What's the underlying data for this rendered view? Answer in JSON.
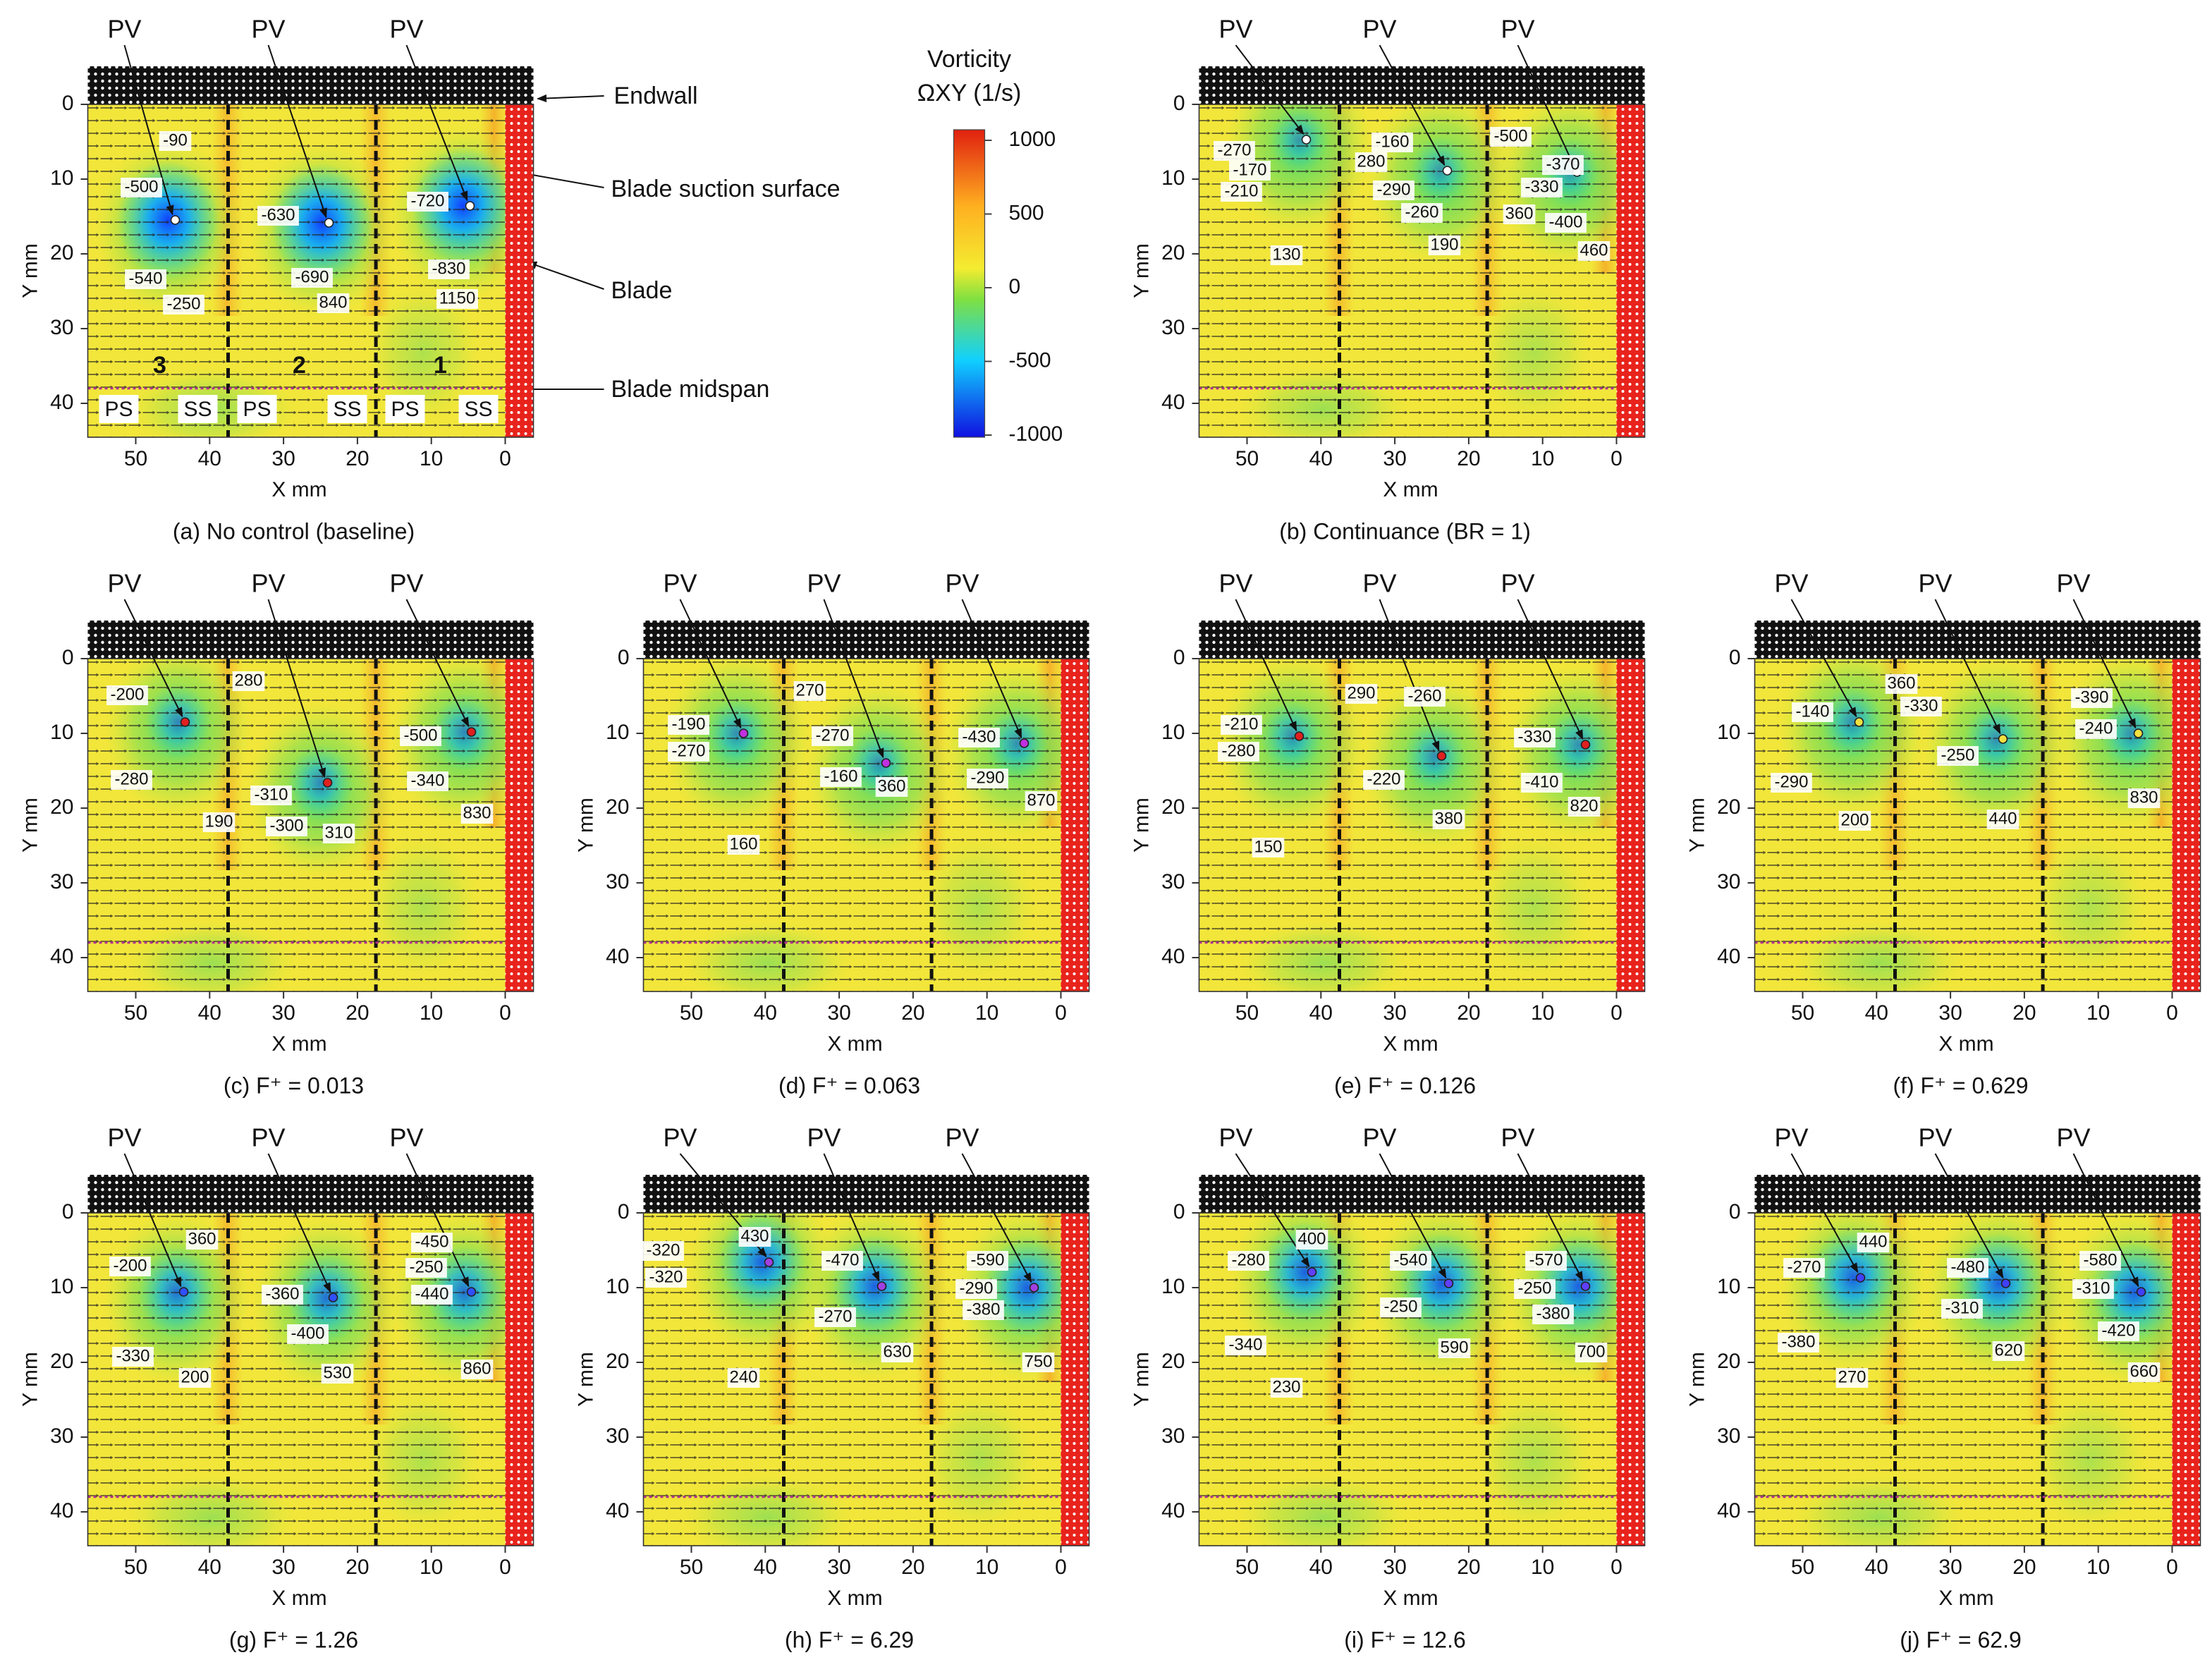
{
  "axes": {
    "xlabel": "X mm",
    "ylabel": "Y mm",
    "xticks": [
      50,
      40,
      30,
      20,
      10,
      0
    ],
    "yticks": [
      0,
      10,
      20,
      30,
      40
    ]
  },
  "colorbar": {
    "title": "Vorticity",
    "subtitle": "ΩXY (1/s)",
    "ticks": [
      1000,
      500,
      0,
      -500,
      -1000
    ]
  },
  "labels": {
    "endwall": "Endwall",
    "suction": "Blade suction surface",
    "blade": "Blade",
    "midspan": "Blade midspan"
  },
  "regions": [
    "3",
    "2",
    "1"
  ],
  "sides": [
    "PS",
    "SS",
    "PS",
    "SS",
    "PS",
    "SS"
  ],
  "vortex_label": "PV",
  "panels": [
    {
      "caption": "(a) No control (baseline)",
      "annotations": [
        -90,
        -500,
        -540,
        -250,
        -630,
        -690,
        840,
        -720,
        -830,
        1150
      ]
    },
    {
      "caption": "(b) Continuance (BR = 1)",
      "annotations": [
        -270,
        -170,
        -210,
        280,
        -160,
        -290,
        -260,
        190,
        130,
        -500,
        -370,
        -330,
        360,
        -400,
        460
      ]
    },
    {
      "caption": "(c) F⁺ = 0.013",
      "annotations": [
        -200,
        280,
        -280,
        190,
        -310,
        -300,
        310,
        -500,
        -340,
        830
      ]
    },
    {
      "caption": "(d) F⁺ = 0.063",
      "annotations": [
        -190,
        -270,
        270,
        -270,
        -160,
        360,
        -430,
        -290,
        870,
        160
      ]
    },
    {
      "caption": "(e) F⁺ = 0.126",
      "annotations": [
        -210,
        -280,
        290,
        -260,
        -220,
        380,
        -330,
        -410,
        820,
        150
      ]
    },
    {
      "caption": "(f) F⁺ = 0.629",
      "annotations": [
        -140,
        360,
        -290,
        200,
        -330,
        -250,
        440,
        -390,
        -240,
        830
      ]
    },
    {
      "caption": "(g) F⁺ = 1.26",
      "annotations": [
        -200,
        360,
        -330,
        200,
        -360,
        -400,
        530,
        -450,
        -250,
        -440,
        860
      ]
    },
    {
      "caption": "(h) F⁺ = 6.29",
      "annotations": [
        -320,
        430,
        -320,
        240,
        -470,
        -270,
        630,
        -590,
        -290,
        -380,
        750
      ]
    },
    {
      "caption": "(i) F⁺ = 12.6",
      "annotations": [
        -280,
        400,
        -340,
        230,
        -540,
        -250,
        590,
        -570,
        -250,
        -380,
        700
      ]
    },
    {
      "caption": "(j) F⁺ = 62.9",
      "annotations": [
        -270,
        440,
        -380,
        270,
        -480,
        -310,
        620,
        -580,
        -310,
        -420,
        660
      ]
    }
  ]
}
